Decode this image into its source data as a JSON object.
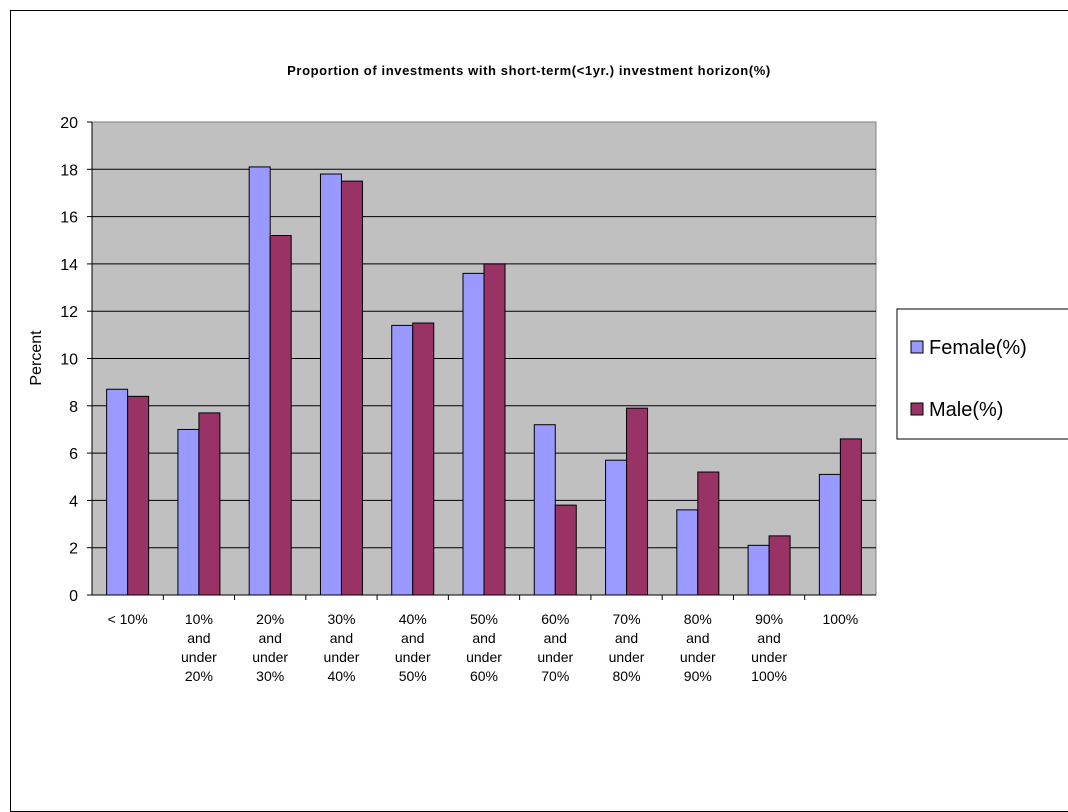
{
  "chart_data": {
    "type": "bar",
    "title": "Proportion of investments with short-term(<1yr.) investment horizon(%)",
    "xlabel": "",
    "ylabel": "Percent",
    "ylim": [
      0,
      20
    ],
    "yticks": [
      "0",
      "2",
      "4",
      "6",
      "8",
      "10",
      "12",
      "14",
      "16",
      "18",
      "20"
    ],
    "grid": true,
    "legend_position": "right",
    "categories": [
      [
        "< 10%"
      ],
      [
        "10%",
        "and",
        "under",
        "20%"
      ],
      [
        "20%",
        "and",
        "under",
        "30%"
      ],
      [
        "30%",
        "and",
        "under",
        "40%"
      ],
      [
        "40%",
        "and",
        "under",
        "50%"
      ],
      [
        "50%",
        "and",
        "under",
        "60%"
      ],
      [
        "60%",
        "and",
        "under",
        "70%"
      ],
      [
        "70%",
        "and",
        "under",
        "80%"
      ],
      [
        "80%",
        "and",
        "under",
        "90%"
      ],
      [
        "90%",
        "and",
        "under",
        "100%"
      ],
      [
        "100%"
      ]
    ],
    "series": [
      {
        "name": "Female(%)",
        "color": "#9999ff",
        "values": [
          8.7,
          7.0,
          18.1,
          17.8,
          11.4,
          13.6,
          7.2,
          5.7,
          3.6,
          2.1,
          5.1
        ]
      },
      {
        "name": "Male(%)",
        "color": "#993366",
        "values": [
          8.4,
          7.7,
          15.2,
          17.5,
          11.5,
          14.0,
          3.8,
          7.9,
          5.2,
          2.5,
          6.6
        ]
      }
    ],
    "plot_background": "#c0c0c0"
  }
}
